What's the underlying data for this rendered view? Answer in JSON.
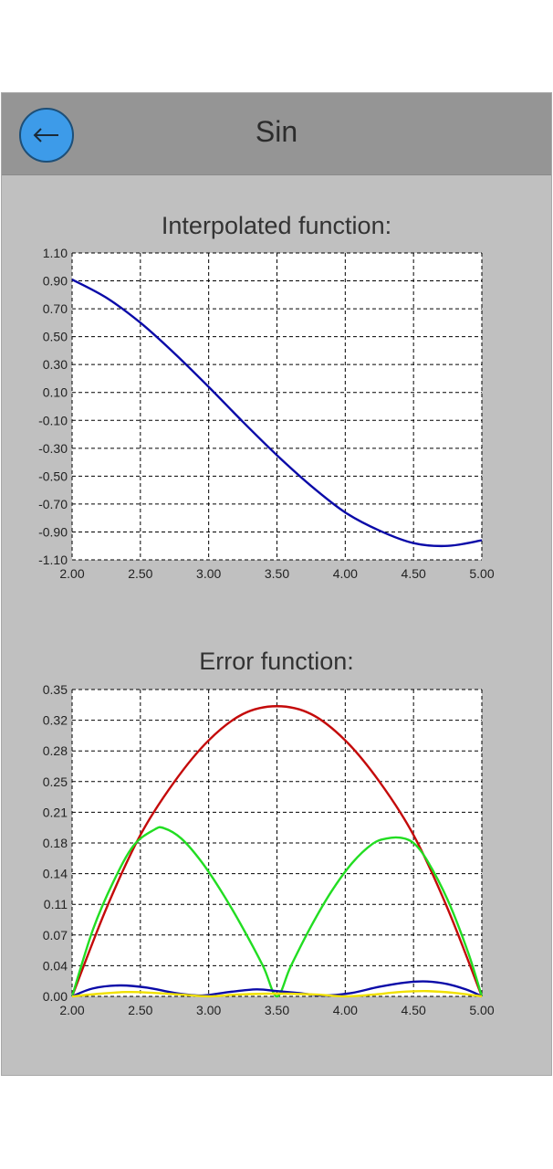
{
  "header": {
    "title": "Sin",
    "back_icon": "arrow-left-icon"
  },
  "colors": {
    "header_bg": "#959595",
    "panel_bg": "#c0c0c0",
    "button_bg": "#3d9be9",
    "series_blue": "#0a0aa8",
    "series_red": "#c40a0a",
    "series_green": "#22dd22",
    "series_yellow": "#f0e000"
  },
  "chart_data": [
    {
      "type": "line",
      "title": "Interpolated function:",
      "xlabel": "",
      "ylabel": "",
      "xlim": [
        2.0,
        5.0
      ],
      "ylim": [
        -1.1,
        1.1
      ],
      "x_ticks": [
        "2.00",
        "2.50",
        "3.00",
        "3.50",
        "4.00",
        "4.50",
        "5.00"
      ],
      "y_ticks": [
        "1.10",
        "0.90",
        "0.70",
        "0.50",
        "0.30",
        "0.10",
        "-0.10",
        "-0.30",
        "-0.50",
        "-0.70",
        "-0.90",
        "-1.10"
      ],
      "grid": true,
      "series": [
        {
          "color": "#0a0aa8",
          "x": [
            2.0,
            2.25,
            2.5,
            2.75,
            3.0,
            3.25,
            3.5,
            3.75,
            4.0,
            4.25,
            4.5,
            4.75,
            5.0
          ],
          "y": [
            0.91,
            0.78,
            0.6,
            0.38,
            0.14,
            -0.11,
            -0.35,
            -0.57,
            -0.76,
            -0.89,
            -0.98,
            -1.0,
            -0.96
          ]
        }
      ]
    },
    {
      "type": "line",
      "title": "Error function:",
      "xlabel": "",
      "ylabel": "",
      "xlim": [
        2.0,
        5.0
      ],
      "ylim": [
        0.0,
        0.35
      ],
      "x_ticks": [
        "2.00",
        "2.50",
        "3.00",
        "3.50",
        "4.00",
        "4.50",
        "5.00"
      ],
      "y_ticks": [
        "0.35",
        "0.32",
        "0.28",
        "0.25",
        "0.21",
        "0.18",
        "0.14",
        "0.11",
        "0.07",
        "0.04",
        "0.00"
      ],
      "grid": true,
      "series": [
        {
          "color": "#c40a0a",
          "x": [
            2.0,
            2.25,
            2.5,
            2.75,
            3.0,
            3.25,
            3.5,
            3.75,
            4.0,
            4.25,
            4.5,
            4.75,
            5.0
          ],
          "y": [
            0.0,
            0.1,
            0.184,
            0.245,
            0.292,
            0.322,
            0.331,
            0.322,
            0.292,
            0.245,
            0.184,
            0.1,
            0.0
          ]
        },
        {
          "color": "#22dd22",
          "x": [
            2.0,
            2.15,
            2.3,
            2.45,
            2.6,
            2.67,
            2.8,
            2.95,
            3.1,
            3.25,
            3.4,
            3.5,
            3.6,
            3.75,
            3.9,
            4.05,
            4.2,
            4.3,
            4.4,
            4.5,
            4.6,
            4.75,
            4.9,
            5.0
          ],
          "y": [
            0.0,
            0.075,
            0.13,
            0.172,
            0.19,
            0.192,
            0.18,
            0.153,
            0.118,
            0.078,
            0.034,
            0.0,
            0.034,
            0.08,
            0.12,
            0.152,
            0.174,
            0.18,
            0.181,
            0.175,
            0.155,
            0.11,
            0.05,
            0.0
          ]
        },
        {
          "color": "#0a0aa8",
          "x": [
            2.0,
            2.15,
            2.35,
            2.55,
            2.75,
            2.95,
            3.15,
            3.35,
            3.5,
            3.65,
            3.85,
            4.05,
            4.25,
            4.45,
            4.6,
            4.75,
            4.9,
            5.0
          ],
          "y": [
            0.0,
            0.009,
            0.0125,
            0.01,
            0.004,
            0.001,
            0.005,
            0.008,
            0.006,
            0.004,
            0.001,
            0.004,
            0.011,
            0.016,
            0.017,
            0.014,
            0.007,
            0.0
          ]
        },
        {
          "color": "#f0e000",
          "x": [
            2.0,
            2.2,
            2.4,
            2.6,
            2.8,
            3.0,
            3.2,
            3.4,
            3.6,
            3.8,
            4.0,
            4.2,
            4.4,
            4.6,
            4.8,
            5.0
          ],
          "y": [
            0.0,
            0.003,
            0.005,
            0.004,
            0.002,
            0.0,
            0.002,
            0.003,
            0.003,
            0.002,
            0.0,
            0.002,
            0.005,
            0.006,
            0.004,
            0.0
          ]
        }
      ]
    }
  ]
}
